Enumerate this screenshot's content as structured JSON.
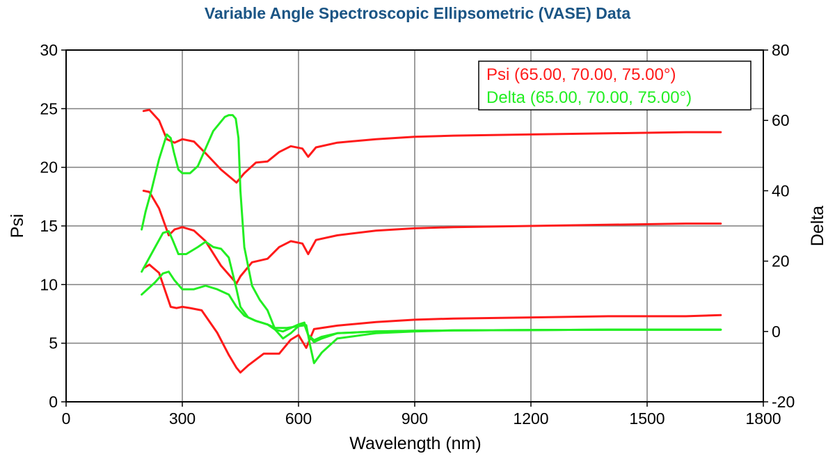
{
  "chart_data": {
    "type": "line",
    "title": "Variable Angle Spectroscopic Ellipsometric (VASE) Data",
    "xlabel": "Wavelength (nm)",
    "ylabel": "Psi",
    "y2label": "Delta",
    "xlim": [
      0,
      1800
    ],
    "ylim": [
      0,
      30
    ],
    "y2lim": [
      -20,
      80
    ],
    "x_ticks": [
      "0",
      "300",
      "600",
      "900",
      "1200",
      "1500",
      "1800"
    ],
    "y_ticks": [
      "0",
      "5",
      "10",
      "15",
      "20",
      "25",
      "30"
    ],
    "y2_ticks": [
      "-20",
      "0",
      "20",
      "40",
      "60",
      "80"
    ],
    "grid": true,
    "legend_position": "top-right",
    "legend": [
      {
        "label": "Psi (65.00, 70.00, 75.00°)",
        "color": "#ff1a1a"
      },
      {
        "label": "Delta (65.00, 70.00, 75.00°)",
        "color": "#22ee22"
      }
    ],
    "series": [
      {
        "group": "Psi",
        "axis": "left",
        "color": "#ff1a1a",
        "x": [
          200,
          215,
          240,
          260,
          280,
          300,
          330,
          360,
          400,
          440,
          460,
          490,
          520,
          550,
          580,
          610,
          625,
          645,
          700,
          800,
          900,
          1000,
          1200,
          1400,
          1600,
          1690
        ],
        "y": [
          24.8,
          24.9,
          24.0,
          22.4,
          22.1,
          22.4,
          22.2,
          21.2,
          19.8,
          18.7,
          19.5,
          20.4,
          20.5,
          21.3,
          21.8,
          21.6,
          20.9,
          21.7,
          22.1,
          22.4,
          22.6,
          22.7,
          22.8,
          22.9,
          23.0,
          23.0
        ]
      },
      {
        "group": "Psi",
        "axis": "left",
        "color": "#ff1a1a",
        "x": [
          200,
          215,
          240,
          265,
          280,
          300,
          330,
          360,
          400,
          440,
          450,
          480,
          520,
          550,
          580,
          610,
          625,
          645,
          700,
          800,
          900,
          1000,
          1200,
          1400,
          1600,
          1690
        ],
        "y": [
          18.0,
          17.9,
          16.5,
          14.2,
          14.7,
          14.9,
          14.6,
          13.7,
          11.6,
          10.1,
          10.7,
          11.9,
          12.2,
          13.2,
          13.7,
          13.5,
          12.6,
          13.8,
          14.2,
          14.6,
          14.8,
          14.9,
          15.0,
          15.1,
          15.2,
          15.2
        ]
      },
      {
        "group": "Psi",
        "axis": "left",
        "color": "#ff1a1a",
        "x": [
          200,
          215,
          240,
          270,
          285,
          300,
          320,
          350,
          390,
          420,
          440,
          450,
          470,
          510,
          550,
          580,
          600,
          620,
          640,
          700,
          800,
          900,
          1000,
          1200,
          1400,
          1600,
          1690
        ],
        "y": [
          11.4,
          11.7,
          11.0,
          8.1,
          8.0,
          8.1,
          8.0,
          7.8,
          5.9,
          4.0,
          2.9,
          2.5,
          3.1,
          4.1,
          4.1,
          5.3,
          5.7,
          4.6,
          6.2,
          6.5,
          6.8,
          7.0,
          7.1,
          7.2,
          7.3,
          7.3,
          7.4
        ]
      },
      {
        "group": "Delta",
        "axis": "right",
        "color": "#22ee22",
        "x": [
          195,
          205,
          220,
          240,
          260,
          270,
          278,
          290,
          300,
          320,
          340,
          360,
          380,
          410,
          420,
          430,
          438,
          445,
          450,
          460,
          480,
          500,
          520,
          540,
          560,
          580,
          600,
          620,
          630,
          640,
          660,
          700,
          800,
          900,
          1000,
          1200,
          1400,
          1600,
          1690
        ],
        "y": [
          29.0,
          34.0,
          40.0,
          49.0,
          56.0,
          55.0,
          51.0,
          46.0,
          45.0,
          45.0,
          47.0,
          52.0,
          57.0,
          61.0,
          61.5,
          61.5,
          60.5,
          55.0,
          40.0,
          24.0,
          13.0,
          9.0,
          6.0,
          0.5,
          -2.0,
          -0.5,
          1.5,
          1.8,
          -4.0,
          -9.0,
          -6.0,
          -2.0,
          -0.5,
          0.0,
          0.3,
          0.4,
          0.5,
          0.5,
          0.5
        ]
      },
      {
        "group": "Delta",
        "axis": "right",
        "color": "#22ee22",
        "x": [
          195,
          210,
          230,
          250,
          265,
          275,
          290,
          310,
          340,
          360,
          380,
          400,
          420,
          440,
          450,
          470,
          490,
          520,
          540,
          560,
          580,
          600,
          615,
          625,
          640,
          660,
          700,
          800,
          900,
          1000,
          1200,
          1400,
          1600,
          1690
        ],
        "y": [
          17.0,
          20.0,
          24.0,
          28.0,
          28.5,
          26.0,
          22.0,
          22.0,
          24.0,
          25.5,
          24.0,
          23.5,
          21.0,
          12.0,
          7.0,
          4.0,
          3.0,
          2.0,
          0.5,
          0.0,
          1.0,
          2.0,
          2.5,
          -1.0,
          -3.0,
          -2.0,
          -0.5,
          0.0,
          0.2,
          0.3,
          0.4,
          0.5,
          0.5,
          0.5
        ]
      },
      {
        "group": "Delta",
        "axis": "right",
        "color": "#22ee22",
        "x": [
          195,
          210,
          230,
          250,
          265,
          280,
          300,
          330,
          360,
          390,
          420,
          440,
          460,
          490,
          520,
          540,
          570,
          600,
          615,
          625,
          640,
          660,
          700,
          800,
          900,
          1000,
          1200,
          1400,
          1600,
          1690
        ],
        "y": [
          10.5,
          12.0,
          14.0,
          16.5,
          17.0,
          14.5,
          12.0,
          12.0,
          13.0,
          12.0,
          10.5,
          7.0,
          4.5,
          3.0,
          2.0,
          1.0,
          1.0,
          1.5,
          2.0,
          -1.0,
          -2.5,
          -1.5,
          -0.5,
          0.0,
          0.2,
          0.3,
          0.4,
          0.5,
          0.5,
          0.5
        ]
      }
    ]
  }
}
